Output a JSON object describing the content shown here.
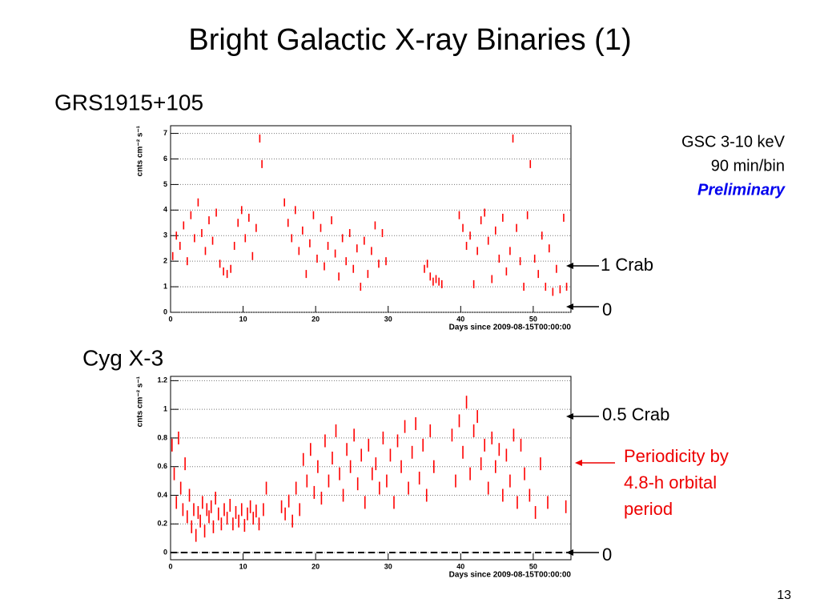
{
  "slide": {
    "title": "Bright Galactic X-ray Binaries (1)",
    "page_number": "13"
  },
  "chart_data": [
    {
      "type": "scatter",
      "title": "GRS1915+105",
      "color": "#ff0000",
      "marker": "vline",
      "xlabel": "Days since 2009-08-15T00:00:00",
      "ylabel": "cnts cm⁻² s⁻¹",
      "xlim": [
        0,
        55.2
      ],
      "xticks": [
        0,
        10,
        20,
        30,
        40,
        50
      ],
      "ylim": [
        0,
        7.3
      ],
      "yticks": [
        0,
        1,
        2,
        3,
        4,
        5,
        6,
        7
      ],
      "grid": true,
      "annotations": [
        "GSC 3-10 keV",
        "90 min/bin",
        "Preliminary",
        "1 Crab",
        "0"
      ],
      "x": [
        0.3,
        0.8,
        1.3,
        1.8,
        2.3,
        2.8,
        3.3,
        3.8,
        4.3,
        4.8,
        5.3,
        5.8,
        6.3,
        6.8,
        7.3,
        7.8,
        8.3,
        8.8,
        9.3,
        9.8,
        10.3,
        10.8,
        11.3,
        11.8,
        12.3,
        12.6,
        15.7,
        16.2,
        16.7,
        17.2,
        17.7,
        18.2,
        18.7,
        19.2,
        19.7,
        20.2,
        20.7,
        21.2,
        21.7,
        22.2,
        22.7,
        23.2,
        23.7,
        24.2,
        24.7,
        25.2,
        25.7,
        26.2,
        26.7,
        27.2,
        27.7,
        28.2,
        28.7,
        29.2,
        29.7,
        35.0,
        35.4,
        35.8,
        36.2,
        36.6,
        37.0,
        37.4,
        39.8,
        40.3,
        40.8,
        41.3,
        41.8,
        42.3,
        42.8,
        43.3,
        43.8,
        44.3,
        44.8,
        45.3,
        45.8,
        46.3,
        46.8,
        47.2,
        47.7,
        48.2,
        48.7,
        49.2,
        49.6,
        50.2,
        50.7,
        51.2,
        51.7,
        52.2,
        52.7,
        53.2,
        53.7,
        54.2,
        54.6
      ],
      "values": [
        2.2,
        3.0,
        2.6,
        3.4,
        2.0,
        3.8,
        2.9,
        4.3,
        3.1,
        2.4,
        3.6,
        2.8,
        3.9,
        1.9,
        1.6,
        1.5,
        1.7,
        2.6,
        3.5,
        4.0,
        2.9,
        3.7,
        2.2,
        3.3,
        6.8,
        5.8,
        4.3,
        3.5,
        2.9,
        4.0,
        2.4,
        3.2,
        1.5,
        2.7,
        3.8,
        2.1,
        3.3,
        1.8,
        2.6,
        3.6,
        2.3,
        1.4,
        2.9,
        2.0,
        3.1,
        1.7,
        2.5,
        1.0,
        2.8,
        1.5,
        2.4,
        3.4,
        1.9,
        3.1,
        2.0,
        1.7,
        1.9,
        1.4,
        1.2,
        1.3,
        1.2,
        1.1,
        3.8,
        3.3,
        2.6,
        3.0,
        1.1,
        2.4,
        3.6,
        3.9,
        2.8,
        1.3,
        3.2,
        2.1,
        3.7,
        1.6,
        2.4,
        6.8,
        3.3,
        2.0,
        1.0,
        3.8,
        5.8,
        2.1,
        1.5,
        3.0,
        1.0,
        2.5,
        0.8,
        1.7,
        0.9,
        3.7,
        1.0
      ]
    },
    {
      "type": "scatter",
      "title": "Cyg X-3",
      "color": "#ff0000",
      "marker": "vline",
      "xlabel": "Days since 2009-08-15T00:00:00",
      "ylabel": "cnts cm⁻² s⁻¹",
      "xlim": [
        0,
        55.2
      ],
      "xticks": [
        0,
        10,
        20,
        30,
        40,
        50
      ],
      "ylim": [
        -0.05,
        1.23
      ],
      "yticks": [
        0,
        0.2,
        0.4,
        0.6,
        0.8,
        1,
        1.2
      ],
      "grid": true,
      "reference_line": 0,
      "annotations": [
        "0.5 Crab",
        "Periodicity by",
        "4.8-h orbital",
        "period",
        "0"
      ],
      "x": [
        0.2,
        0.5,
        0.8,
        1.1,
        1.4,
        1.7,
        2.0,
        2.3,
        2.6,
        2.9,
        3.2,
        3.5,
        3.8,
        4.1,
        4.4,
        4.7,
        5.0,
        5.3,
        5.6,
        5.9,
        6.2,
        6.6,
        7.0,
        7.4,
        7.8,
        8.2,
        8.6,
        9.0,
        9.4,
        9.8,
        10.2,
        10.6,
        11.0,
        11.4,
        11.8,
        12.2,
        12.8,
        13.2,
        15.3,
        15.8,
        16.3,
        16.8,
        17.3,
        17.8,
        18.3,
        18.8,
        19.3,
        19.8,
        20.3,
        20.8,
        21.3,
        21.8,
        22.3,
        22.8,
        23.3,
        23.8,
        24.3,
        24.8,
        25.3,
        25.8,
        26.3,
        26.8,
        27.3,
        27.8,
        28.3,
        28.8,
        29.3,
        29.8,
        30.3,
        30.8,
        31.3,
        31.8,
        32.3,
        32.8,
        33.3,
        33.8,
        34.3,
        34.8,
        35.3,
        35.8,
        36.3,
        38.8,
        39.3,
        39.8,
        40.3,
        40.8,
        41.3,
        41.8,
        42.3,
        42.8,
        43.3,
        43.8,
        44.3,
        44.8,
        45.3,
        45.8,
        46.3,
        46.8,
        47.3,
        47.8,
        48.3,
        48.8,
        49.5,
        50.3,
        51.0,
        52.0,
        54.5
      ],
      "values": [
        0.75,
        0.55,
        0.35,
        0.8,
        0.45,
        0.3,
        0.62,
        0.25,
        0.4,
        0.18,
        0.3,
        0.12,
        0.28,
        0.22,
        0.35,
        0.15,
        0.3,
        0.25,
        0.32,
        0.18,
        0.38,
        0.27,
        0.2,
        0.3,
        0.24,
        0.33,
        0.2,
        0.28,
        0.22,
        0.3,
        0.19,
        0.27,
        0.32,
        0.24,
        0.29,
        0.2,
        0.3,
        0.45,
        0.32,
        0.27,
        0.36,
        0.22,
        0.45,
        0.3,
        0.65,
        0.5,
        0.72,
        0.42,
        0.6,
        0.38,
        0.78,
        0.5,
        0.66,
        0.85,
        0.55,
        0.4,
        0.72,
        0.6,
        0.82,
        0.48,
        0.68,
        0.35,
        0.75,
        0.55,
        0.62,
        0.45,
        0.8,
        0.5,
        0.68,
        0.35,
        0.78,
        0.6,
        0.88,
        0.45,
        0.7,
        0.9,
        0.52,
        0.75,
        0.4,
        0.85,
        0.6,
        0.82,
        0.5,
        0.92,
        0.7,
        1.05,
        0.55,
        0.85,
        0.95,
        0.62,
        0.75,
        0.45,
        0.8,
        0.6,
        0.72,
        0.4,
        0.68,
        0.5,
        0.82,
        0.35,
        0.75,
        0.55,
        0.4,
        0.28,
        0.62,
        0.35,
        0.32
      ]
    }
  ]
}
